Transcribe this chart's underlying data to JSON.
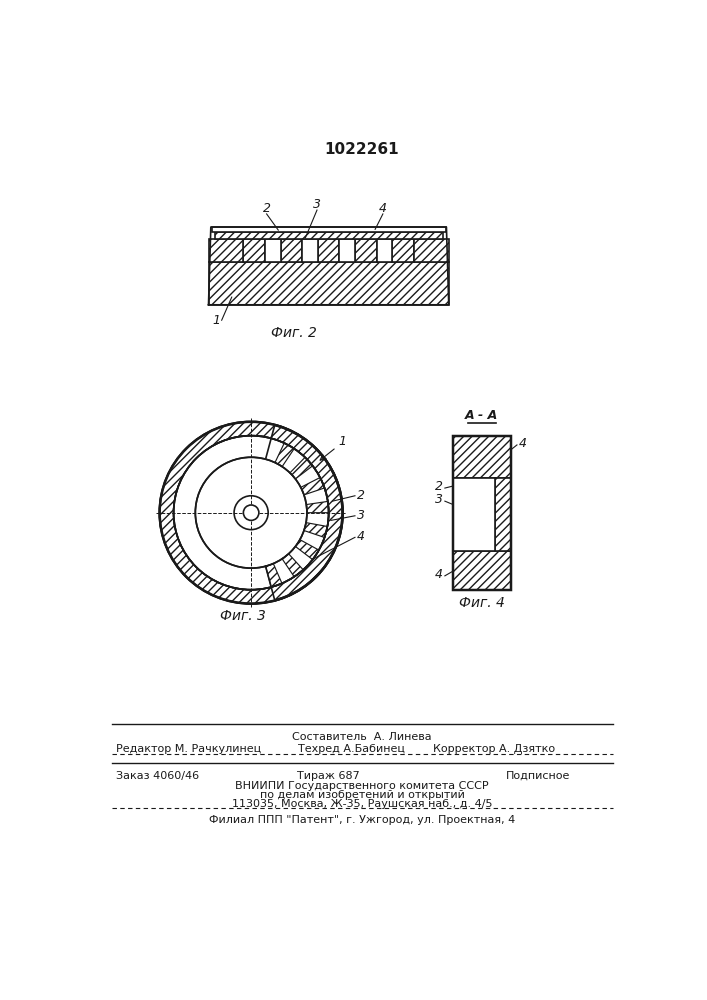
{
  "title_number": "1022261",
  "fig2_label": "Фиг. 2",
  "fig3_label": "Фиг. 3",
  "fig4_label": "Фиг. 4",
  "section_label": "A - A",
  "bg_color": "#ffffff",
  "line_color": "#1a1a1a",
  "footer_line1": "Составитель  А. Линева",
  "footer_line2_left": "Редактор М. Рачкулинец",
  "footer_line2_mid": "Техред А.Бабинец",
  "footer_line2_right": "Корректор А. Дзятко",
  "footer_line3_left": "Заказ 4060/46",
  "footer_line3_mid": "Тираж 687",
  "footer_line3_right": "Подписное",
  "footer_line4": "ВНИИПИ Государственного комитета СССР",
  "footer_line5": "по делам изобретений и открытий",
  "footer_line6": "113035, Москва, Ж-35, Раушская наб., д. 4/5",
  "footer_line7": "Филиал ППП \"Патент\", г. Ужгород, ул. Проектная, 4"
}
